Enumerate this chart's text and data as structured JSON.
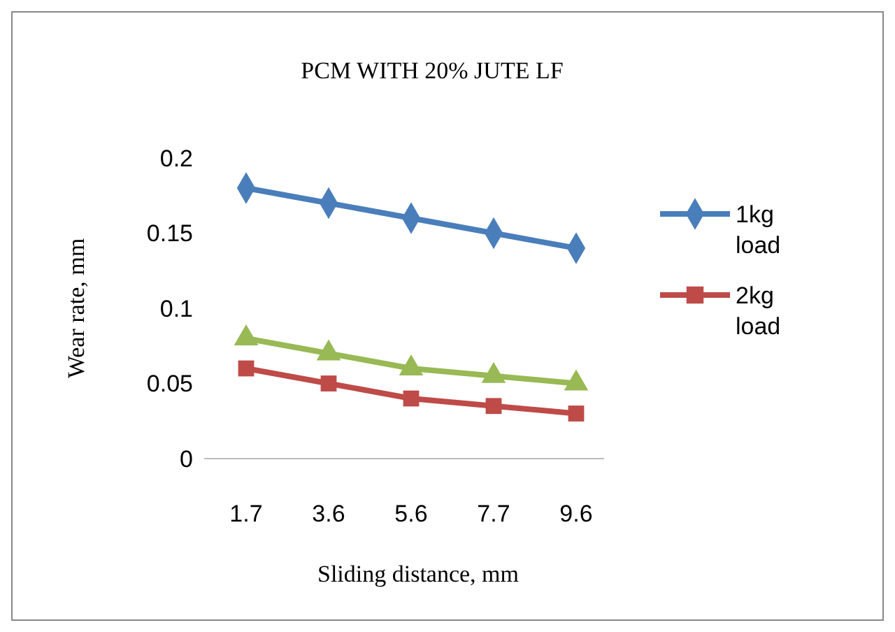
{
  "chart_data": {
    "type": "line",
    "title": "PCM WITH 20% JUTE LF",
    "xlabel": "Sliding distance, mm",
    "ylabel": "Wear rate, mm",
    "categories": [
      "1.7",
      "3.6",
      "5.6",
      "7.7",
      "9.6"
    ],
    "series": [
      {
        "name": "1kg load",
        "color": "#4a7ebb",
        "marker": "diamond",
        "values": [
          0.18,
          0.17,
          0.16,
          0.15,
          0.14
        ]
      },
      {
        "name": "2kg load",
        "color": "#be4b48",
        "marker": "square",
        "values": [
          0.06,
          0.05,
          0.04,
          0.035,
          0.03
        ]
      },
      {
        "color": "#98b954",
        "marker": "triangle",
        "values": [
          0.08,
          0.07,
          0.06,
          0.055,
          0.05
        ]
      }
    ],
    "ylim": [
      0,
      0.2
    ],
    "yticks": [
      0,
      0.05,
      0.1,
      0.15,
      0.2
    ],
    "grid": false,
    "legend": "right"
  }
}
